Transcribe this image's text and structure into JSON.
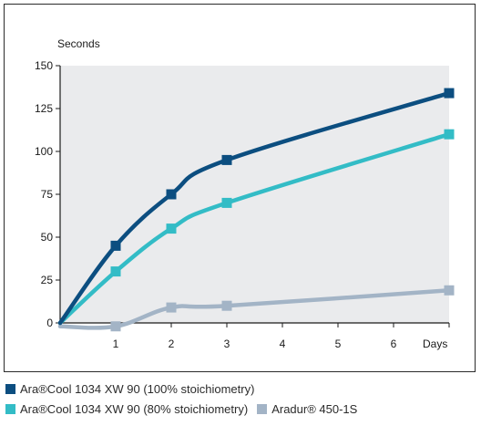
{
  "chart_data": {
    "type": "line",
    "ylabel": "Seconds",
    "xlabel": "Days",
    "xlim": [
      0,
      7
    ],
    "ylim": [
      0,
      150
    ],
    "xticks": [
      1,
      2,
      3,
      4,
      5,
      6
    ],
    "yticks": [
      0,
      25,
      50,
      75,
      100,
      125,
      150
    ],
    "grid": false,
    "plot_background": "#eaebed",
    "series": [
      {
        "name": "Ara®Cool 1034 XW 90 (100% stoichiometry)",
        "color": "#0c4e80",
        "x": [
          0,
          1,
          2,
          3,
          7
        ],
        "y": [
          0,
          45,
          75,
          95,
          134
        ]
      },
      {
        "name": "Ara®Cool 1034 XW 90 (80% stoichiometry)",
        "color": "#33bcc6",
        "x": [
          0,
          1,
          2,
          3,
          7
        ],
        "y": [
          0,
          30,
          55,
          70,
          110
        ]
      },
      {
        "name": "Aradur® 450-1S",
        "color": "#a3b4c6",
        "x": [
          0,
          1,
          2,
          3,
          7
        ],
        "y": [
          -2,
          -2,
          9,
          10,
          19
        ]
      }
    ]
  },
  "legend": [
    {
      "label": "Ara®Cool 1034 XW 90 (100% stoichiometry)",
      "color": "#0c4e80"
    },
    {
      "label": "Ara®Cool 1034 XW 90 (80% stoichiometry)",
      "color": "#33bcc6"
    },
    {
      "label": "Aradur® 450-1S",
      "color": "#a3b4c6"
    }
  ]
}
